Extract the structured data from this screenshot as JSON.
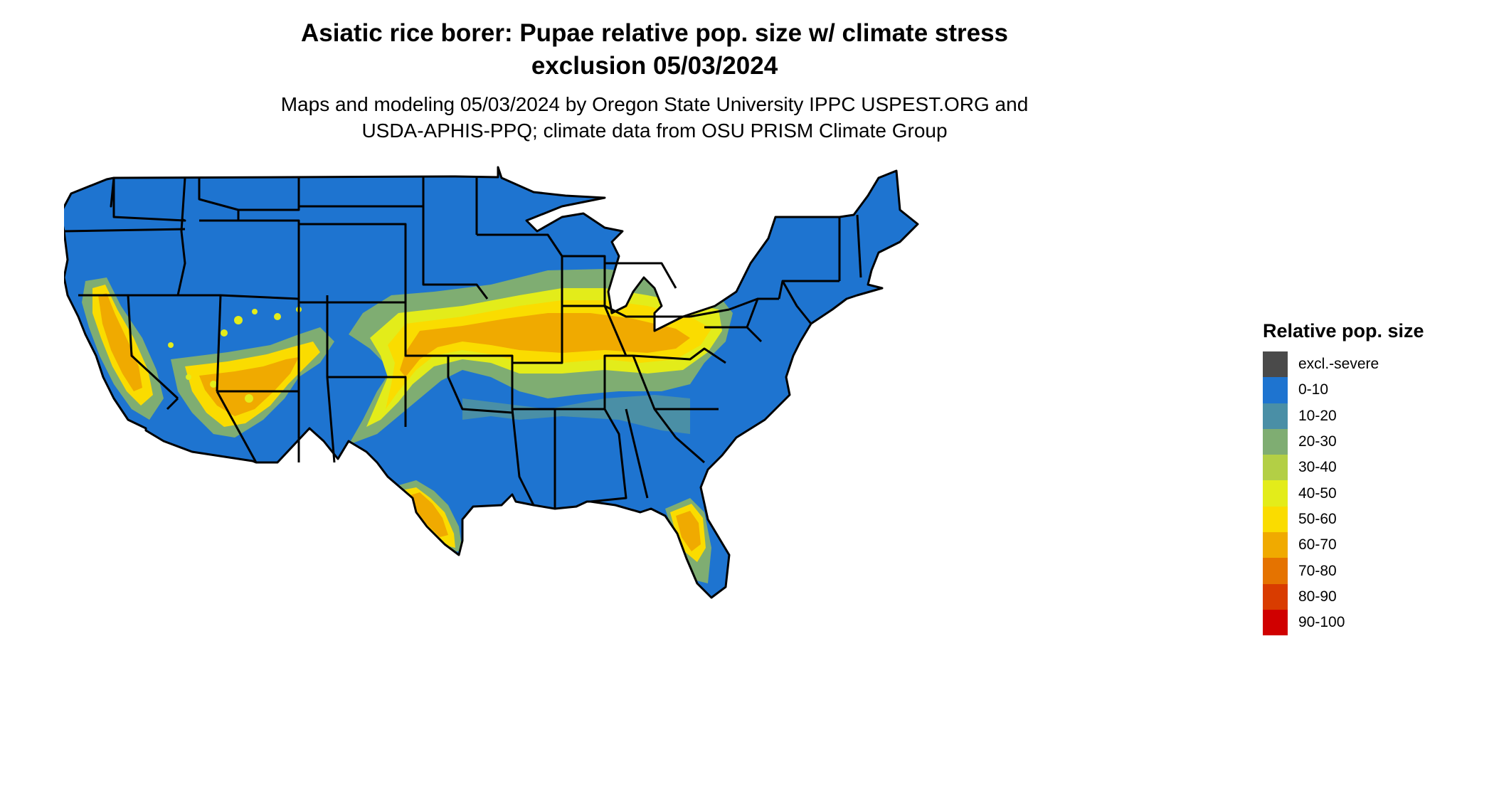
{
  "title": {
    "line1": "Asiatic rice borer: Pupae relative pop. size w/ climate stress",
    "line2": "exclusion 05/03/2024"
  },
  "subtitle": {
    "line1": "Maps and modeling 05/03/2024 by Oregon State University IPPC USPEST.ORG and",
    "line2": "USDA-APHIS-PPQ; climate data from OSU PRISM Climate Group"
  },
  "legend": {
    "title": "Relative pop. size",
    "items": [
      {
        "label": "excl.-severe",
        "color": "#4a4a4a"
      },
      {
        "label": "0-10",
        "color": "#1e74d0"
      },
      {
        "label": "10-20",
        "color": "#4a8fa6"
      },
      {
        "label": "20-30",
        "color": "#7fad72"
      },
      {
        "label": "30-40",
        "color": "#b3cf45"
      },
      {
        "label": "40-50",
        "color": "#e3ec1a"
      },
      {
        "label": "50-60",
        "color": "#fadc00"
      },
      {
        "label": "60-70",
        "color": "#f0aa00"
      },
      {
        "label": "70-80",
        "color": "#e57300"
      },
      {
        "label": "80-90",
        "color": "#d93c00"
      },
      {
        "label": "90-100",
        "color": "#d00000"
      }
    ]
  },
  "colors": {
    "base": "#1e74d0",
    "band_10_20": "#4a8fa6",
    "band_20_30": "#7fad72",
    "band_40_50": "#e3ec1a",
    "band_50_60": "#fadc00",
    "band_60_70": "#f0aa00",
    "border": "#000000"
  }
}
